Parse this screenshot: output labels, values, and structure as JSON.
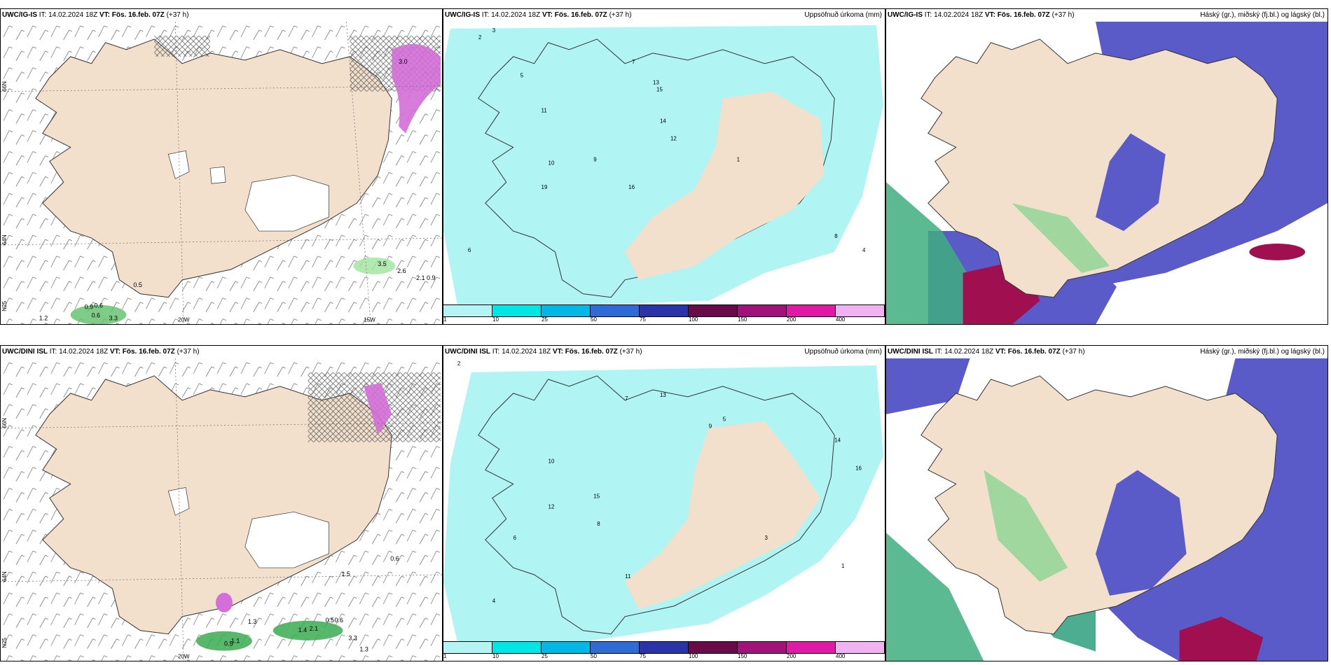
{
  "rows": [
    {
      "panels": [
        {
          "type": "wind",
          "model": "UWC/IG-IS",
          "it_label": "IT:",
          "it_value": "14.02.2024 18Z",
          "vt_label": "VT:",
          "vt_value": "Fös. 16.feb. 07Z",
          "lead": "(+37 h)",
          "right_title": "",
          "lat_labels": [
            "66N",
            "64N",
            "N25"
          ],
          "lon_labels": [
            "20W",
            "15W"
          ],
          "values": [
            "3.0",
            "0.5",
            "0.9",
            "0.6",
            "0.6",
            "1.2",
            "3.3",
            "3.5",
            "2.6",
            "2.1",
            "0.9"
          ]
        },
        {
          "type": "precip",
          "model": "UWC/IG-IS",
          "it_label": "IT:",
          "it_value": "14.02.2024 18Z",
          "vt_label": "VT:",
          "vt_value": "Fös. 16.feb. 07Z",
          "lead": "(+37 h)",
          "right_title": "Uppsöfnuð úrkoma (mm)",
          "values": [
            "3",
            "2",
            "5",
            "7",
            "9",
            "11",
            "13",
            "14",
            "12",
            "10",
            "19",
            "15",
            "6",
            "4",
            "8",
            "16",
            "1"
          ]
        },
        {
          "type": "cloud",
          "model": "UWC/IG-IS",
          "it_label": "IT:",
          "it_value": "14.02.2024 18Z",
          "vt_label": "VT:",
          "vt_value": "Fös. 16.feb. 07Z",
          "lead": "(+37 h)",
          "right_title": "Háský (gr.), miðský (fj.bl.) og lágský (bl.)"
        }
      ]
    },
    {
      "panels": [
        {
          "type": "wind",
          "model": "UWC/DINI ISL",
          "it_label": "IT:",
          "it_value": "14.02.2024 18Z",
          "vt_label": "VT:",
          "vt_value": "Fös. 16.feb. 07Z",
          "lead": "(+37 h)",
          "right_title": "",
          "lat_labels": [
            "66N",
            "64N",
            "N25"
          ],
          "lon_labels": [
            "20W"
          ],
          "values": [
            "1.5",
            "0.6",
            "0.5",
            "0.6",
            "1.3",
            "1.1",
            "0.5",
            "1.4",
            "2.1",
            "3.3",
            "1.3"
          ]
        },
        {
          "type": "precip",
          "model": "UWC/DINI ISL",
          "it_label": "IT:",
          "it_value": "14.02.2024 18Z",
          "vt_label": "VT:",
          "vt_value": "Fös. 16.feb. 07Z",
          "lead": "(+37 h)",
          "right_title": "Uppsöfnuð úrkoma (mm)",
          "values": [
            "2",
            "7",
            "10",
            "12",
            "13",
            "15",
            "5",
            "6",
            "8",
            "4",
            "3",
            "1",
            "9",
            "11",
            "14",
            "16"
          ]
        },
        {
          "type": "cloud",
          "model": "UWC/DINI ISL",
          "it_label": "IT:",
          "it_value": "14.02.2024 18Z",
          "vt_label": "VT:",
          "vt_value": "Fös. 16.feb. 07Z",
          "lead": "(+37 h)",
          "right_title": "Háský (gr.), miðský (fj.bl.) og lágský (bl.)"
        }
      ]
    }
  ],
  "colorbar": {
    "labels": [
      "1",
      "10",
      "25",
      "50",
      "75",
      "100",
      "150",
      "200",
      "400"
    ],
    "colors": [
      "#b4f4f4",
      "#00e6e6",
      "#00b7e8",
      "#2f6bd6",
      "#2a33a8",
      "#6b0a4a",
      "#a3127a",
      "#e01aa6",
      "#f0b2f0"
    ]
  },
  "colors": {
    "land": "#f2e0cc",
    "precip": "#b0f4f4",
    "cloud_mid": "#5a5ac8",
    "cloud_high": "#3fae80",
    "cloud_red": "#a01050"
  }
}
